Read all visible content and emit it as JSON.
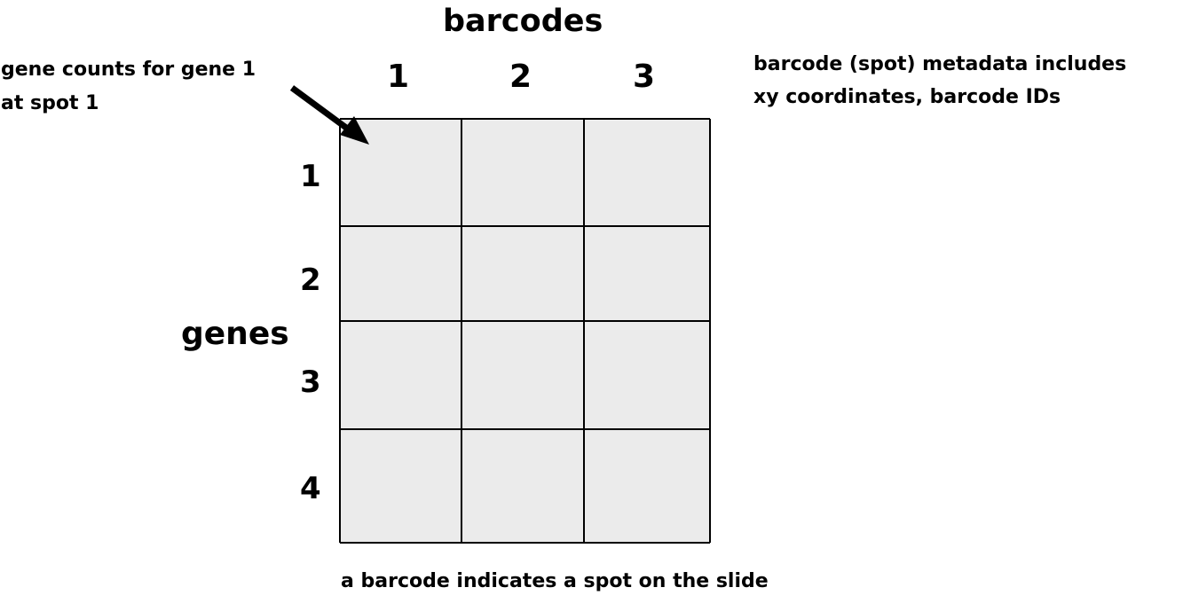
{
  "column_axis_title": "barcodes",
  "row_axis_title": "genes",
  "column_labels": [
    "1",
    "2",
    "3"
  ],
  "row_labels": [
    "1",
    "2",
    "3",
    "4"
  ],
  "arrow_annotation": {
    "lines": [
      "gene counts for gene 1",
      "at spot  1"
    ]
  },
  "metadata_note": {
    "lines": [
      "barcode (spot) metadata includes",
      "xy coordinates, barcode IDs"
    ]
  },
  "caption": "a barcode indicates a spot on the slide",
  "colors": {
    "cell_fill": "#ebebeb",
    "grid_line": "#000000",
    "text": "#000000",
    "background": "#ffffff"
  }
}
